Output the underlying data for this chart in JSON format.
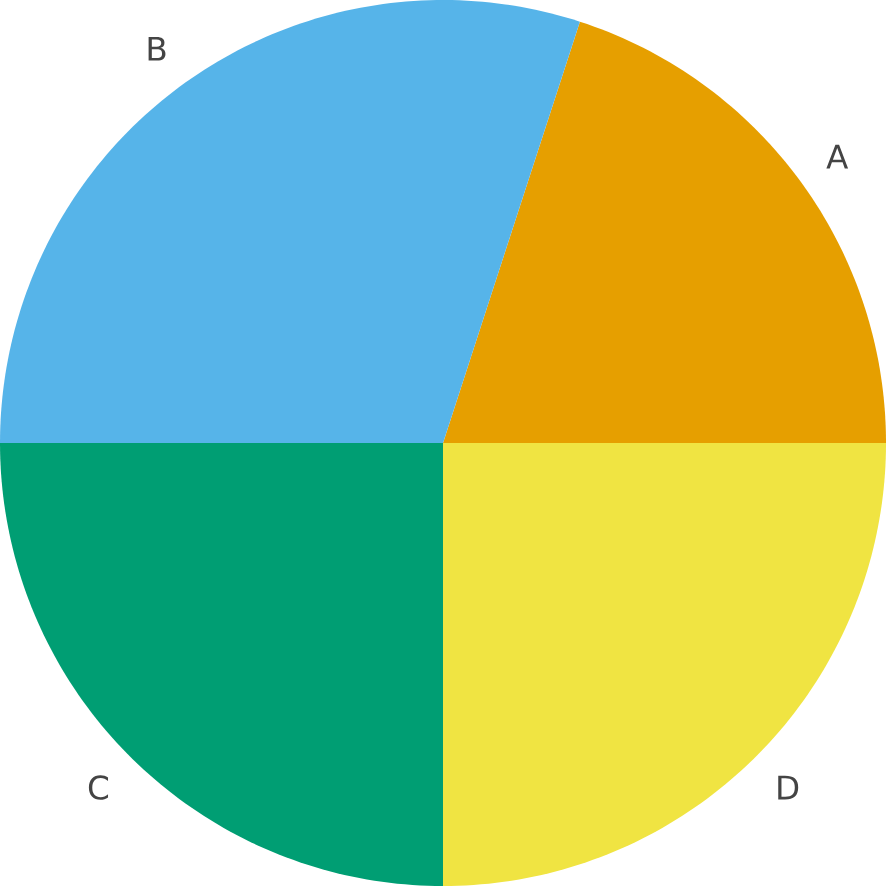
{
  "chart_data": {
    "type": "pie",
    "categories": [
      "A",
      "B",
      "C",
      "D"
    ],
    "values": [
      20,
      30,
      25,
      25
    ],
    "colors": [
      "#e69f00",
      "#56b4e9",
      "#009e73",
      "#f0e442"
    ]
  }
}
